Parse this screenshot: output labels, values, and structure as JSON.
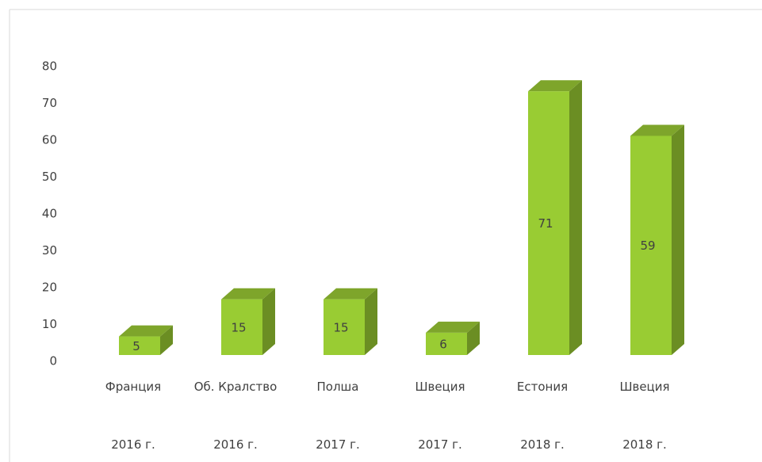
{
  "chart_data": {
    "type": "bar3d",
    "categories": [
      "Франция",
      "Об. Кралство",
      "Полша",
      "Швеция",
      "Естония",
      "Швеция"
    ],
    "groups": [
      "2016 г.",
      "2016 г.",
      "2017 г.",
      "2017 г.",
      "2018 г.",
      "2018 г."
    ],
    "values": [
      5,
      15,
      15,
      6,
      71,
      59
    ],
    "color": "#99cc33",
    "side_color": "#6b8e23",
    "top_color": "#7ea52b",
    "ylim": [
      0,
      80
    ],
    "yticks": [
      0,
      10,
      20,
      30,
      40,
      50,
      60,
      70,
      80
    ],
    "grid": false
  }
}
